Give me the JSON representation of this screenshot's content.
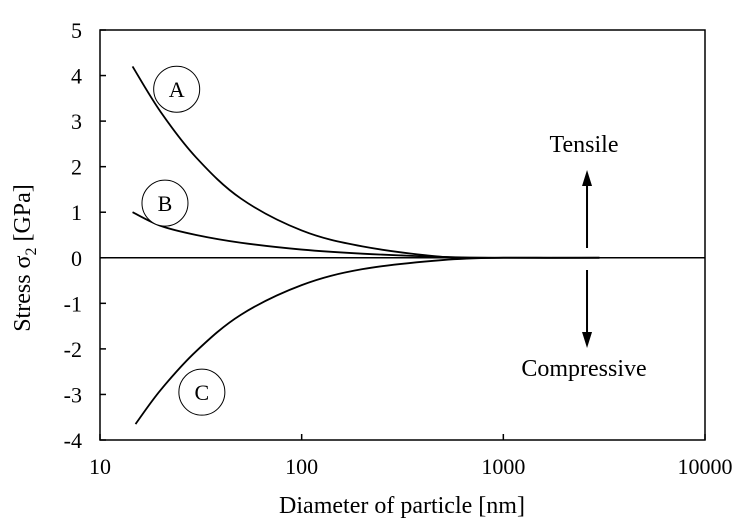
{
  "chart_data": {
    "type": "line",
    "title": "",
    "xlabel": "Diameter of particle [nm]",
    "ylabel_prefix": "Stress σ",
    "ylabel_sub": "2",
    "ylabel_suffix": " [GPa]",
    "xscale": "log",
    "xlim": [
      10,
      10000
    ],
    "ylim": [
      -4,
      5
    ],
    "xticks": [
      10,
      100,
      1000,
      10000
    ],
    "xtick_labels": [
      "10",
      "100",
      "1000",
      "10000"
    ],
    "yticks": [
      5,
      4,
      3,
      2,
      1,
      0,
      -1,
      -2,
      -3,
      -4
    ],
    "ytick_labels": [
      "5",
      "4",
      "3",
      "2",
      "1",
      "0",
      "-1",
      "-2",
      "-3",
      "-4"
    ],
    "grid": false,
    "series": [
      {
        "name": "A",
        "x": [
          14.5,
          20,
          30,
          50,
          100,
          200,
          500,
          1000,
          3000
        ],
        "y": [
          4.2,
          3.2,
          2.2,
          1.3,
          0.6,
          0.25,
          0.02,
          0,
          0
        ]
      },
      {
        "name": "B",
        "x": [
          14.5,
          20,
          30,
          50,
          100,
          200,
          500,
          1000,
          3000
        ],
        "y": [
          1.0,
          0.7,
          0.5,
          0.33,
          0.18,
          0.09,
          0.02,
          0,
          0
        ]
      },
      {
        "name": "C",
        "x": [
          15,
          20,
          30,
          50,
          100,
          200,
          500,
          1000,
          3000
        ],
        "y": [
          -3.65,
          -2.9,
          -2.05,
          -1.25,
          -0.6,
          -0.25,
          -0.05,
          0,
          0
        ]
      }
    ],
    "curve_labels": [
      {
        "text": "A",
        "x": 24,
        "y": 3.7
      },
      {
        "text": "B",
        "x": 21,
        "y": 1.2
      },
      {
        "text": "C",
        "x": 32,
        "y": -2.95
      }
    ],
    "annotations": {
      "tensile": "Tensile",
      "compressive": "Compressive",
      "arrow_x": 2600
    }
  }
}
